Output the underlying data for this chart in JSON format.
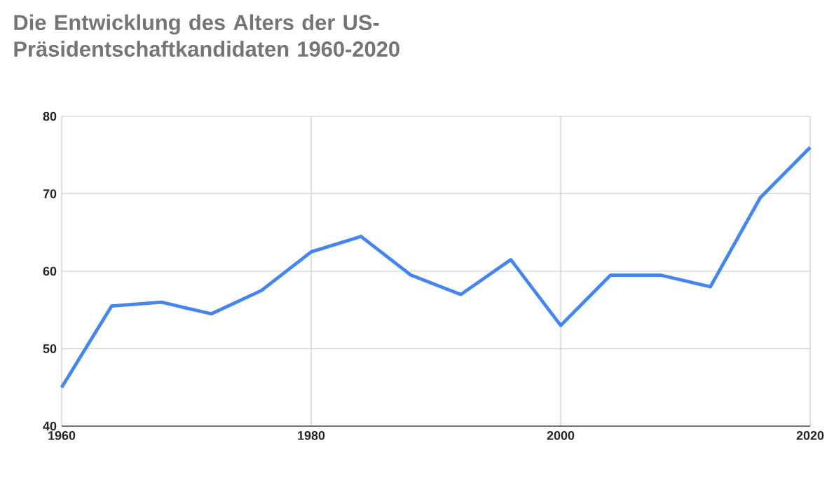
{
  "chart_data": {
    "type": "line",
    "title": "Die Entwicklung des Alters der US-Präsidentschaftkandidaten 1960-2020",
    "x": [
      1960,
      1964,
      1968,
      1972,
      1976,
      1980,
      1984,
      1988,
      1992,
      1996,
      2000,
      2004,
      2008,
      2012,
      2016,
      2020
    ],
    "series": [
      {
        "color": "#4285f4",
        "values": [
          45,
          55.5,
          56,
          54.5,
          57.5,
          62.5,
          64.5,
          59.5,
          57,
          61.5,
          53,
          59.5,
          59.5,
          58,
          69.5,
          76
        ]
      }
    ],
    "xlim": [
      1960,
      2020
    ],
    "xticks": [
      1960,
      1980,
      2000,
      2020
    ],
    "ylim": [
      40,
      80
    ],
    "yticks": [
      40,
      50,
      60,
      70,
      80
    ],
    "grid": true,
    "legend": false,
    "marker": "none",
    "line_style": "solid"
  }
}
